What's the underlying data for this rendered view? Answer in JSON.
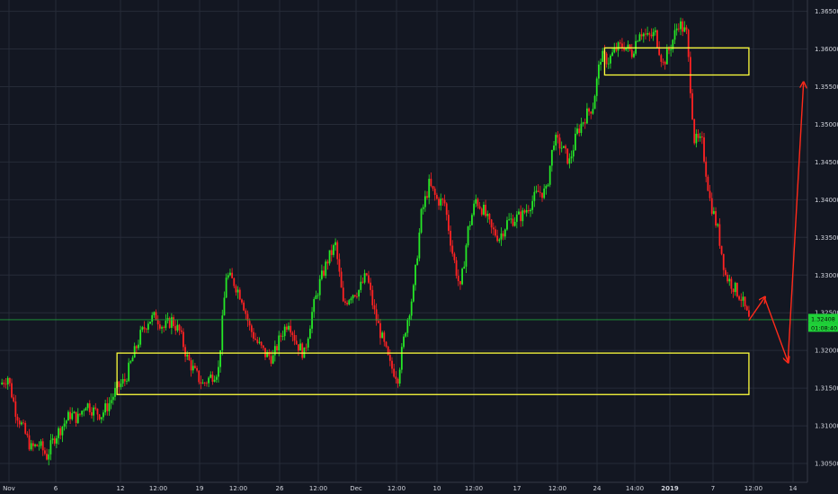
{
  "chart_data": {
    "type": "candlestick",
    "title": "",
    "xlabel": "",
    "ylabel": "",
    "ylim": [
      1.3025,
      1.3665
    ],
    "y_ticks": [
      "1.30500",
      "1.31000",
      "1.31500",
      "1.32000",
      "1.32500",
      "1.33000",
      "1.33500",
      "1.34000",
      "1.34500",
      "1.35000",
      "1.35500",
      "1.36000",
      "1.36500"
    ],
    "x_ticks": [
      "Nov",
      "6",
      "12",
      "12:00",
      "19",
      "12:00",
      "26",
      "12:00",
      "Dec",
      "12:00",
      "10",
      "12:00",
      "17",
      "12:00",
      "24",
      "14:00",
      "2019",
      "7",
      "12:00",
      "14"
    ],
    "grid": true,
    "last_price": "1.32408",
    "countdown": "01:08:40",
    "colors": {
      "background": "#131722",
      "up": "#26e826",
      "down": "#ff2222",
      "zone": "#ffff3c",
      "arrow": "#ff2a1a",
      "price_line": "#1f9e3a",
      "price_tag": "#1fd138",
      "grid": "#262b38"
    },
    "close_path": [
      [
        0,
        1.3155
      ],
      [
        1,
        1.3165
      ],
      [
        2,
        1.312
      ],
      [
        3,
        1.3095
      ],
      [
        4,
        1.307
      ],
      [
        5,
        1.3075
      ],
      [
        6,
        1.306
      ],
      [
        7,
        1.3085
      ],
      [
        8,
        1.31
      ],
      [
        9,
        1.3115
      ],
      [
        10,
        1.311
      ],
      [
        11,
        1.313
      ],
      [
        12,
        1.312
      ],
      [
        13,
        1.3115
      ],
      [
        14,
        1.313
      ],
      [
        15,
        1.315
      ],
      [
        16,
        1.316
      ],
      [
        17,
        1.319
      ],
      [
        18,
        1.322
      ],
      [
        19,
        1.324
      ],
      [
        20,
        1.3245
      ],
      [
        21,
        1.323
      ],
      [
        22,
        1.324
      ],
      [
        23,
        1.3225
      ],
      [
        24,
        1.319
      ],
      [
        25,
        1.317
      ],
      [
        26,
        1.3155
      ],
      [
        27,
        1.3165
      ],
      [
        28,
        1.3175
      ],
      [
        29,
        1.33
      ],
      [
        30,
        1.329
      ],
      [
        31,
        1.327
      ],
      [
        32,
        1.323
      ],
      [
        33,
        1.321
      ],
      [
        34,
        1.3195
      ],
      [
        35,
        1.319
      ],
      [
        36,
        1.322
      ],
      [
        37,
        1.324
      ],
      [
        38,
        1.321
      ],
      [
        39,
        1.3195
      ],
      [
        40,
        1.325
      ],
      [
        41,
        1.329
      ],
      [
        42,
        1.332
      ],
      [
        43,
        1.334
      ],
      [
        44,
        1.326
      ],
      [
        45,
        1.3275
      ],
      [
        46,
        1.328
      ],
      [
        47,
        1.33
      ],
      [
        48,
        1.325
      ],
      [
        49,
        1.3215
      ],
      [
        50,
        1.318
      ],
      [
        51,
        1.3165
      ],
      [
        52,
        1.323
      ],
      [
        53,
        1.328
      ],
      [
        54,
        1.338
      ],
      [
        55,
        1.342
      ],
      [
        56,
        1.34
      ],
      [
        57,
        1.3395
      ],
      [
        58,
        1.333
      ],
      [
        59,
        1.328
      ],
      [
        60,
        1.336
      ],
      [
        61,
        1.34
      ],
      [
        62,
        1.3385
      ],
      [
        63,
        1.336
      ],
      [
        64,
        1.335
      ],
      [
        65,
        1.337
      ],
      [
        66,
        1.3375
      ],
      [
        67,
        1.338
      ],
      [
        68,
        1.3395
      ],
      [
        69,
        1.341
      ],
      [
        70,
        1.341
      ],
      [
        71,
        1.348
      ],
      [
        72,
        1.347
      ],
      [
        73,
        1.345
      ],
      [
        74,
        1.349
      ],
      [
        75,
        1.351
      ],
      [
        76,
        1.3525
      ],
      [
        77,
        1.359
      ],
      [
        78,
        1.3585
      ],
      [
        79,
        1.36
      ],
      [
        80,
        1.3605
      ],
      [
        81,
        1.3595
      ],
      [
        82,
        1.3625
      ],
      [
        83,
        1.3615
      ],
      [
        84,
        1.362
      ],
      [
        85,
        1.358
      ],
      [
        86,
        1.3605
      ],
      [
        87,
        1.3635
      ],
      [
        88,
        1.362
      ],
      [
        89,
        1.348
      ],
      [
        90,
        1.3475
      ],
      [
        91,
        1.34
      ],
      [
        92,
        1.336
      ],
      [
        93,
        1.33
      ],
      [
        94,
        1.3285
      ],
      [
        95,
        1.327
      ],
      [
        96,
        1.324
      ]
    ],
    "zones": [
      {
        "y_top": 1.36015,
        "y_bottom": 1.35655,
        "x_start": 77.5,
        "x_end": 96.0
      },
      {
        "y_top": 1.31965,
        "y_bottom": 1.31415,
        "x_start": 15.0,
        "x_end": 96.0
      }
    ],
    "projection_arrows": [
      [
        [
          96,
          1.324
        ],
        [
          98,
          1.327
        ]
      ],
      [
        [
          98,
          1.327
        ],
        [
          101,
          1.3185
        ]
      ],
      [
        [
          101,
          1.3185
        ],
        [
          103,
          1.3555
        ]
      ]
    ]
  }
}
